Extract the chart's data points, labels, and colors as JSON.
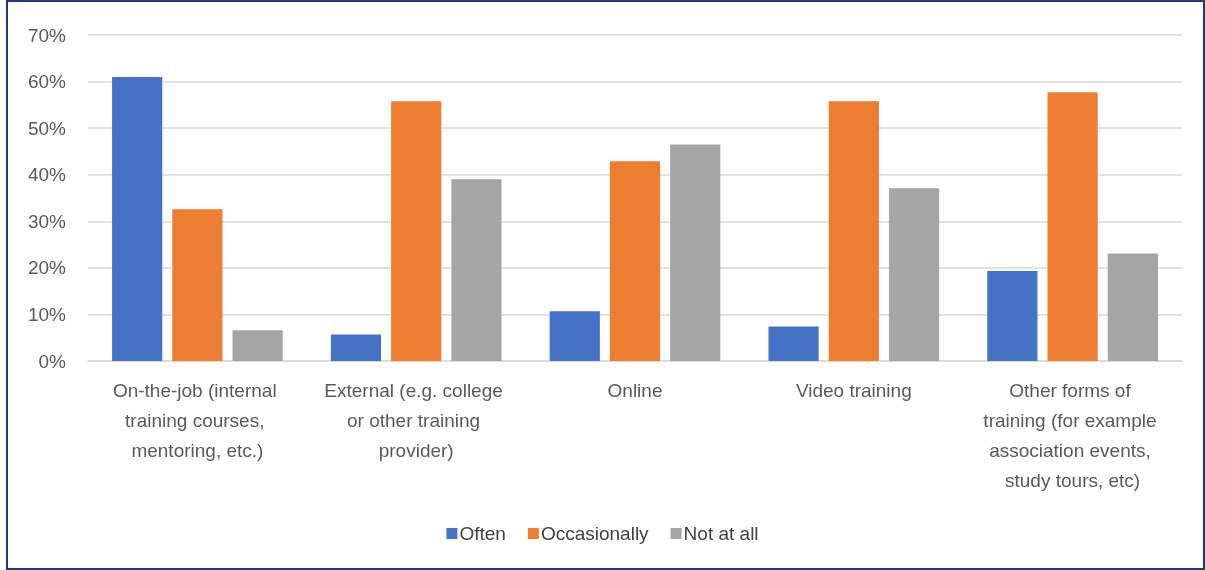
{
  "chart_data": {
    "type": "bar",
    "categories": [
      "On-the-job (internal training courses, mentoring, etc.)",
      "External (e.g. college or other training provider)",
      "Online",
      "Video training",
      "Other forms of training (for example association events, study tours, etc)"
    ],
    "series": [
      {
        "name": "Often",
        "color": "#4472c4",
        "values": [
          61,
          5.7,
          10.7,
          7.4,
          19.3
        ]
      },
      {
        "name": "Occasionally",
        "color": "#ed7d31",
        "values": [
          32.6,
          55.8,
          42.9,
          55.8,
          57.7
        ]
      },
      {
        "name": "Not at all",
        "color": "#a5a5a5",
        "values": [
          6.6,
          39.0,
          46.5,
          37.1,
          23.1
        ]
      }
    ],
    "ylim": [
      0,
      70
    ],
    "yticks": [
      {
        "value": 0,
        "label": "0%"
      },
      {
        "value": 10,
        "label": "10%"
      },
      {
        "value": 20,
        "label": "20%"
      },
      {
        "value": 30,
        "label": "30%"
      },
      {
        "value": 40,
        "label": "40%"
      },
      {
        "value": 50,
        "label": "50%"
      },
      {
        "value": 60,
        "label": "60%"
      },
      {
        "value": 70,
        "label": "70%"
      }
    ],
    "grid": "y",
    "legend": "bottom"
  }
}
